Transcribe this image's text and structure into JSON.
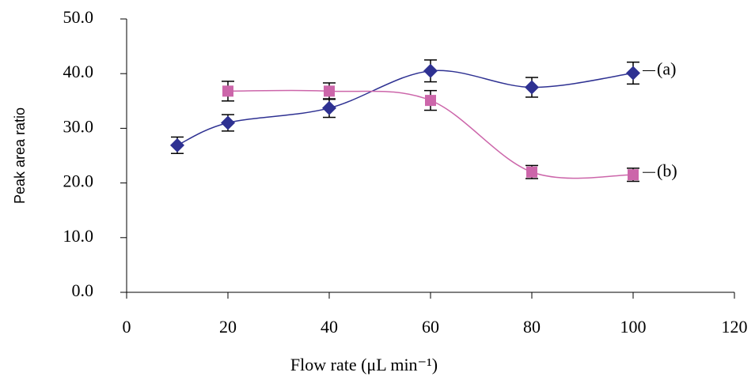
{
  "chart_data": {
    "type": "line",
    "x_label": "Flow rate (μL min⁻¹)",
    "y_label": "Peak area ratio",
    "xlim": [
      0,
      120
    ],
    "xticks": [
      0,
      20,
      40,
      60,
      80,
      100,
      120
    ],
    "ylim": [
      0,
      50
    ],
    "yticks": [
      {
        "value": 0,
        "label": "0.0"
      },
      {
        "value": 10,
        "label": "10.0"
      },
      {
        "value": 20,
        "label": "20.0"
      },
      {
        "value": 30,
        "label": "30.0"
      },
      {
        "value": 40,
        "label": "40.0"
      },
      {
        "value": 50,
        "label": "50.0"
      }
    ],
    "series": [
      {
        "name": "(a)",
        "color": "#2e3192",
        "marker": "diamond",
        "x": [
          10,
          20,
          40,
          60,
          80,
          100
        ],
        "values": [
          26.9,
          31.0,
          33.7,
          40.5,
          37.5,
          40.1
        ],
        "errors": [
          1.5,
          1.5,
          1.7,
          2.0,
          1.8,
          2.0
        ]
      },
      {
        "name": "(b)",
        "color": "#cc66aa",
        "marker": "square",
        "x": [
          20,
          40,
          60,
          80,
          100
        ],
        "values": [
          36.8,
          36.8,
          35.1,
          22.0,
          21.5
        ],
        "errors": [
          1.8,
          1.5,
          1.8,
          1.2,
          1.2
        ]
      }
    ]
  }
}
